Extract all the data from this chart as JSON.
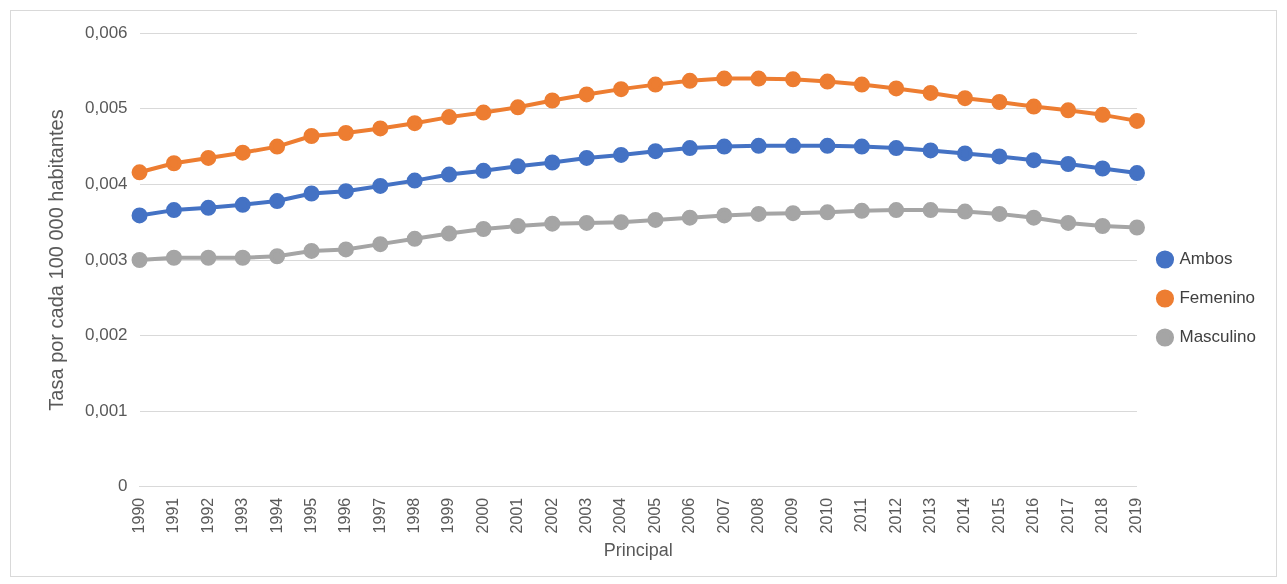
{
  "chart_data": {
    "type": "line",
    "xlabel": "Principal",
    "ylabel": "Tasa por cada 100 000 habitantes",
    "categories": [
      "1990",
      "1991",
      "1992",
      "1993",
      "1994",
      "1995",
      "1996",
      "1997",
      "1998",
      "1999",
      "2000",
      "2001",
      "2002",
      "2003",
      "2004",
      "2005",
      "2006",
      "2007",
      "2008",
      "2009",
      "2010",
      "2011",
      "2012",
      "2013",
      "2014",
      "2015",
      "2016",
      "2017",
      "2018",
      "2019"
    ],
    "series": [
      {
        "name": "Ambos",
        "color": "#4472c4",
        "values": [
          0.00359,
          0.00366,
          0.00369,
          0.00373,
          0.00378,
          0.00388,
          0.00391,
          0.00398,
          0.00405,
          0.00413,
          0.00418,
          0.00424,
          0.00429,
          0.00435,
          0.00439,
          0.00444,
          0.00448,
          0.0045,
          0.00451,
          0.00451,
          0.00451,
          0.0045,
          0.00448,
          0.00445,
          0.00441,
          0.00437,
          0.00432,
          0.00427,
          0.00421,
          0.00415
        ]
      },
      {
        "name": "Femenino",
        "color": "#ed7d31",
        "values": [
          0.00416,
          0.00428,
          0.00435,
          0.00442,
          0.0045,
          0.00464,
          0.00468,
          0.00474,
          0.00481,
          0.00489,
          0.00495,
          0.00502,
          0.00511,
          0.00519,
          0.00526,
          0.00532,
          0.00537,
          0.0054,
          0.0054,
          0.00539,
          0.00536,
          0.00532,
          0.00527,
          0.00521,
          0.00514,
          0.00509,
          0.00503,
          0.00498,
          0.00492,
          0.00484
        ]
      },
      {
        "name": "Masculino",
        "color": "#a5a5a5",
        "values": [
          0.003,
          0.00303,
          0.00303,
          0.00303,
          0.00305,
          0.00312,
          0.00314,
          0.00321,
          0.00328,
          0.00335,
          0.00341,
          0.00345,
          0.00348,
          0.00349,
          0.0035,
          0.00353,
          0.00356,
          0.00359,
          0.00361,
          0.00362,
          0.00363,
          0.00365,
          0.00366,
          0.00366,
          0.00364,
          0.00361,
          0.00356,
          0.00349,
          0.00345,
          0.00343
        ]
      }
    ],
    "ylim": [
      0,
      0.006
    ],
    "yticks": [
      0,
      {
        "value": 0.001,
        "label": "0,001"
      },
      {
        "value": 0.002,
        "label": "0,002"
      },
      {
        "value": 0.003,
        "label": "0,003"
      },
      {
        "value": 0.004,
        "label": "0,004"
      },
      {
        "value": 0.005,
        "label": "0,005"
      },
      {
        "value": 0.006,
        "label": "0,006"
      }
    ],
    "grid": "y",
    "legend": "right",
    "marker": "circle",
    "line_style": "solid"
  }
}
